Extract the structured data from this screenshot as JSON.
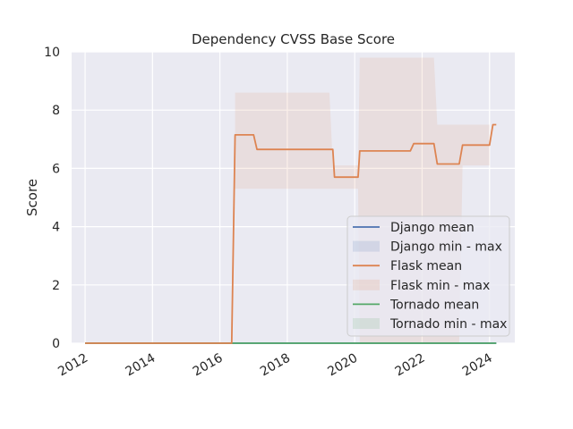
{
  "chart_data": {
    "type": "line",
    "title": "Dependency CVSS Base Score",
    "xlabel": "",
    "ylabel": "Score",
    "xlim": [
      2011.6,
      2024.75
    ],
    "ylim": [
      0,
      10
    ],
    "x_ticks": [
      "2012",
      "2014",
      "2016",
      "2018",
      "2020",
      "2022",
      "2024"
    ],
    "y_ticks": [
      "0",
      "2",
      "4",
      "6",
      "8",
      "10"
    ],
    "grid": true,
    "legend_position": "lower-right",
    "legend": [
      {
        "label": "Django mean",
        "kind": "line",
        "color": "#4c72b0"
      },
      {
        "label": "Django min - max",
        "kind": "band",
        "color": "#4c72b0"
      },
      {
        "label": "Flask mean",
        "kind": "line",
        "color": "#dd8452"
      },
      {
        "label": "Flask min - max",
        "kind": "band",
        "color": "#dd8452"
      },
      {
        "label": "Tornado mean",
        "kind": "line",
        "color": "#55a868"
      },
      {
        "label": "Tornado min - max",
        "kind": "band",
        "color": "#55a868"
      }
    ],
    "series": [
      {
        "name": "Django mean",
        "color": "#4c72b0",
        "x": [
          2012.0,
          2024.2
        ],
        "y": [
          0,
          0
        ]
      },
      {
        "name": "Tornado mean",
        "color": "#55a868",
        "x": [
          2012.0,
          2024.2
        ],
        "y": [
          0,
          0
        ]
      },
      {
        "name": "Flask mean",
        "color": "#dd8452",
        "x": [
          2012.0,
          2016.35,
          2016.45,
          2017.0,
          2017.1,
          2019.35,
          2019.4,
          2020.1,
          2020.15,
          2021.65,
          2021.75,
          2022.35,
          2022.45,
          2023.1,
          2023.2,
          2024.0,
          2024.1,
          2024.2
        ],
        "y": [
          0,
          0,
          7.15,
          7.15,
          6.65,
          6.65,
          5.7,
          5.7,
          6.6,
          6.6,
          6.85,
          6.85,
          6.15,
          6.15,
          6.8,
          6.8,
          7.5,
          7.5
        ]
      }
    ],
    "bands": [
      {
        "name": "Flask min - max",
        "color": "#dd8452",
        "x": [
          2016.45,
          2019.25,
          2019.35,
          2020.1,
          2020.15,
          2022.35,
          2022.45,
          2023.1,
          2023.2,
          2024.0
        ],
        "ymin": [
          5.3,
          5.3,
          5.3,
          5.3,
          0,
          0,
          0,
          0,
          6.1,
          6.1
        ],
        "ymax": [
          8.6,
          8.6,
          6.1,
          6.1,
          9.8,
          9.8,
          7.5,
          7.5,
          7.5,
          7.5
        ]
      }
    ]
  }
}
